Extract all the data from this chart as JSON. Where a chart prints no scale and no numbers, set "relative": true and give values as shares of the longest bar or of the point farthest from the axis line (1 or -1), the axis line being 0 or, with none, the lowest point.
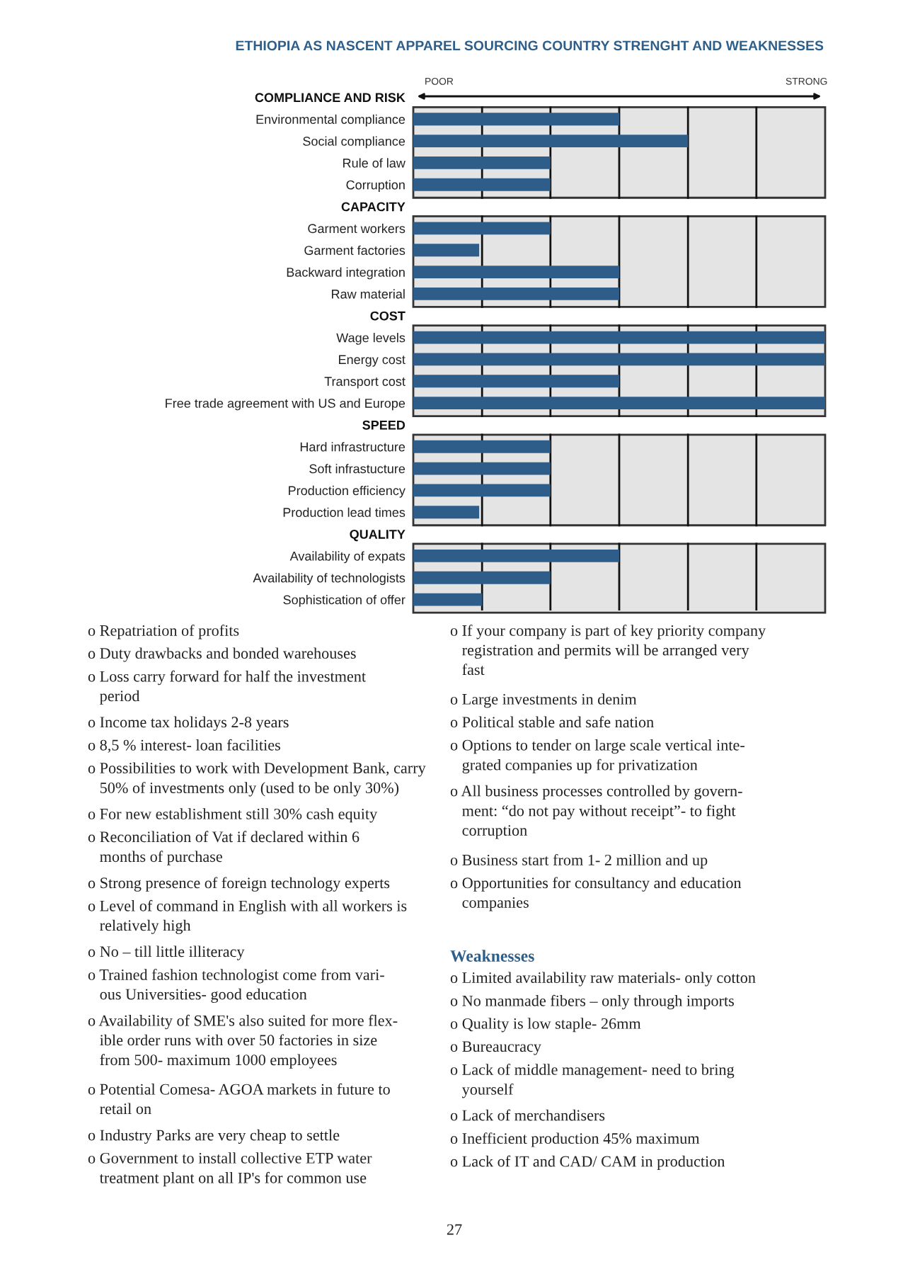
{
  "chart_data": [
    {
      "type": "bar",
      "orientation": "horizontal",
      "relative": true,
      "color": "#2f5d8a",
      "title": "ETHIOPIA AS NASCENT APPAREL SOURCING COUNTRY STRENGHT AND WEAKNESSES",
      "annotations": [
        "POOR",
        "STRONG"
      ],
      "categories": [
        "COMPLIANCE AND RISK",
        "Environmental compliance",
        "Social compliance",
        "Rule of law",
        "Corruption",
        "CAPACITY",
        "Garment workers",
        "Garment factories",
        "Backward integration",
        "Raw material",
        "COST",
        "Wage levels",
        "Energy cost",
        "Transport cost",
        "Free trade agreement with US and Europe",
        "SPEED",
        "Hard infrastructure",
        "Soft infrastucture",
        "Production efficiency",
        "Production lead times",
        "QUALITY",
        "Availability of expats",
        "Availability of technologists",
        "Sophistication of offer"
      ],
      "values": [
        null,
        0.5,
        0.667,
        0.333,
        0.333,
        null,
        0.333,
        0.16,
        0.5,
        0.5,
        null,
        1,
        1,
        0.5,
        1,
        null,
        0.333,
        0.333,
        0.333,
        0.16,
        null,
        0.5,
        0.333,
        0.167
      ],
      "ref_lines": [
        {
          "axis": "x",
          "value": 0.167,
          "color": "#111111"
        },
        {
          "axis": "x",
          "value": 0.333,
          "color": "#111111"
        },
        {
          "axis": "x",
          "value": 0.5,
          "color": "#111111"
        },
        {
          "axis": "x",
          "value": 0.667,
          "color": "#111111"
        },
        {
          "axis": "x",
          "value": 0.833,
          "color": "#111111"
        }
      ]
    },
    {
      "type": "other",
      "annotations": [
        "o Repatriation of profits",
        "o Duty drawbacks and bonded warehouses",
        "o Loss carry forward for half the investment\n   period",
        "o Income tax holidays 2-8 years",
        "o 8,5 % interest- loan facilities",
        "o Possibilities to work with Development Bank, carry\n   50% of investments only (used to be only 30%)",
        "o For new establishment still 30% cash equity",
        "o Reconciliation of Vat if declared within 6\n   months of purchase",
        "o Strong presence of foreign technology experts",
        "o Level of command in English with all workers is\n   relatively high",
        "o No – till little illiteracy",
        "o Trained fashion technologist come from vari-\n   ous Universities- good education",
        "o Availability of SME's also suited for more flex-\n   ible order runs with over 50 factories in size\n   from 500- maximum 1000 employees",
        "o Potential Comesa- AGOA markets in future to\n   retail on",
        "o Industry Parks are very cheap to settle",
        "o Government to install collective ETP water\n   treatment plant on all IP's for common use"
      ]
    },
    {
      "type": "other",
      "annotations": [
        "o If your company is part of key priority company\n   registration and permits will be arranged very\n   fast",
        "o Large investments in denim",
        "o Political stable and safe nation",
        "o Options to tender on large scale vertical inte-\n   grated companies up for privatization",
        "o All business processes controlled by govern-\n   ment: “do not pay without receipt”- to fight\n   corruption",
        "o Business start from 1- 2 million and up",
        "o Opportunities for consultancy and education\n   companies"
      ]
    },
    {
      "type": "other",
      "title": "Weaknesses",
      "annotations": [
        "o Limited availability raw materials- only cotton",
        "o No manmade fibers – only through imports",
        "o Quality is low staple- 26mm",
        "o Bureaucracy",
        "o Lack of middle management- need to bring\n   yourself",
        "o Lack of merchandisers",
        "o Inefficient production 45% maximum",
        "o Lack of IT and CAD/ CAM in production"
      ]
    },
    {
      "type": "other",
      "annotations": [
        "27"
      ]
    }
  ]
}
